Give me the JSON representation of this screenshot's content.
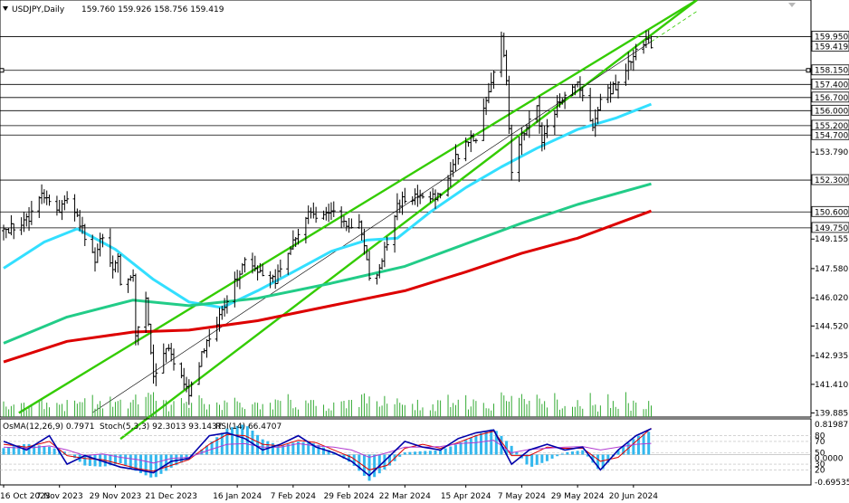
{
  "header": {
    "symbol": "USDJPY,Daily",
    "ohlc": "159.760 159.926 158.756 159.419",
    "dropdown_icon": "triangle-down-icon"
  },
  "colors": {
    "candle": "#000000",
    "price_line": "#000000",
    "level_line": "#000000",
    "channel": "#33cc00",
    "ema_fast": "#33dfff",
    "ema_mid": "#22cc88",
    "ema_slow": "#dd0000",
    "volume": "#33aa33",
    "osma_bar": "#33b8ee",
    "stoch_main": "#0000aa",
    "stoch_signal": "#dd0000",
    "rsi": "#b23bd1"
  },
  "chart_data": {
    "type": "candlestick",
    "symbol": "USDJPY",
    "timeframe": "Daily",
    "price_axis": {
      "range": [
        139.665,
        161.9
      ],
      "ticks": [
        "159.950",
        "159.419",
        "158.150",
        "157.400",
        "156.700",
        "156.000",
        "155.200",
        "154.700",
        "153.790",
        "152.300",
        "150.600",
        "149.750",
        "149.155",
        "147.580",
        "146.020",
        "144.520",
        "142.935",
        "141.410",
        "139.885"
      ]
    },
    "time_axis": {
      "range": [
        "2023-10-16",
        "2024-07-15"
      ],
      "labels": [
        {
          "date": "2023-10-16",
          "label": "16 Oct 2023"
        },
        {
          "date": "2023-11-07",
          "label": "7 Nov 2023"
        },
        {
          "date": "2023-11-29",
          "label": "29 Nov 2023"
        },
        {
          "date": "2023-12-21",
          "label": "21 Dec 2023"
        },
        {
          "date": "2024-01-16",
          "label": "16 Jan 2024"
        },
        {
          "date": "2024-02-07",
          "label": "7 Feb 2024"
        },
        {
          "date": "2024-02-29",
          "label": "29 Feb 2024"
        },
        {
          "date": "2024-03-22",
          "label": "22 Mar 2024"
        },
        {
          "date": "2024-04-15",
          "label": "15 Apr 2024"
        },
        {
          "date": "2024-05-07",
          "label": "7 May 2024"
        },
        {
          "date": "2024-05-29",
          "label": "29 May 2024"
        },
        {
          "date": "2024-06-20",
          "label": "20 Jun 2024"
        }
      ]
    },
    "price_path": [
      [
        "2023-10-16",
        149.6
      ],
      [
        "2023-10-23",
        149.9
      ],
      [
        "2023-10-26",
        150.2
      ],
      [
        "2023-10-31",
        151.5
      ],
      [
        "2023-11-01",
        151.2
      ],
      [
        "2023-11-07",
        150.7
      ],
      [
        "2023-11-10",
        151.5
      ],
      [
        "2023-11-14",
        150.3
      ],
      [
        "2023-11-17",
        149.3
      ],
      [
        "2023-11-21",
        148.0
      ],
      [
        "2023-11-24",
        149.4
      ],
      [
        "2023-11-28",
        147.5
      ],
      [
        "2023-11-30",
        148.1
      ],
      [
        "2023-12-01",
        146.9
      ],
      [
        "2023-12-06",
        147.2
      ],
      [
        "2023-12-07",
        144.1
      ],
      [
        "2023-12-11",
        146.0
      ],
      [
        "2023-12-14",
        141.9
      ],
      [
        "2023-12-19",
        143.5
      ],
      [
        "2023-12-22",
        142.4
      ],
      [
        "2023-12-28",
        141.0
      ],
      [
        "2024-01-03",
        143.3
      ],
      [
        "2024-01-10",
        145.4
      ],
      [
        "2024-01-16",
        147.2
      ],
      [
        "2024-01-19",
        148.1
      ],
      [
        "2024-01-24",
        147.5
      ],
      [
        "2024-01-31",
        146.9
      ],
      [
        "2024-02-05",
        148.6
      ],
      [
        "2024-02-09",
        149.3
      ],
      [
        "2024-02-13",
        150.6
      ],
      [
        "2024-02-16",
        150.2
      ],
      [
        "2024-02-22",
        150.5
      ],
      [
        "2024-02-29",
        149.9
      ],
      [
        "2024-03-04",
        150.1
      ],
      [
        "2024-03-08",
        147.1
      ],
      [
        "2024-03-12",
        147.6
      ],
      [
        "2024-03-15",
        149.0
      ],
      [
        "2024-03-19",
        150.8
      ],
      [
        "2024-03-22",
        151.4
      ],
      [
        "2024-03-29",
        151.3
      ],
      [
        "2024-04-05",
        151.6
      ],
      [
        "2024-04-10",
        153.2
      ],
      [
        "2024-04-15",
        154.3
      ],
      [
        "2024-04-19",
        154.6
      ],
      [
        "2024-04-26",
        158.2
      ],
      [
        "2024-04-29",
        160.2
      ],
      [
        "2024-05-01",
        157.5
      ],
      [
        "2024-05-03",
        152.9
      ],
      [
        "2024-05-07",
        154.6
      ],
      [
        "2024-05-13",
        156.2
      ],
      [
        "2024-05-15",
        154.4
      ],
      [
        "2024-05-21",
        156.3
      ],
      [
        "2024-05-29",
        157.6
      ],
      [
        "2024-06-04",
        154.9
      ],
      [
        "2024-06-07",
        156.8
      ],
      [
        "2024-06-14",
        157.4
      ],
      [
        "2024-06-20",
        158.9
      ],
      [
        "2024-06-24",
        159.5
      ],
      [
        "2024-06-26",
        160.0
      ],
      [
        "2024-06-27",
        159.419
      ]
    ],
    "series": [
      {
        "kind": "ema",
        "color_key": "ema_fast",
        "points": [
          [
            "2023-10-16",
            147.6
          ],
          [
            "2023-11-01",
            149.0
          ],
          [
            "2023-11-14",
            149.7
          ],
          [
            "2023-11-29",
            148.6
          ],
          [
            "2023-12-14",
            147.0
          ],
          [
            "2023-12-28",
            145.8
          ],
          [
            "2024-01-10",
            145.5
          ],
          [
            "2024-01-24",
            146.4
          ],
          [
            "2024-02-07",
            147.4
          ],
          [
            "2024-02-22",
            148.5
          ],
          [
            "2024-03-07",
            149.1
          ],
          [
            "2024-03-19",
            149.2
          ],
          [
            "2024-04-01",
            150.6
          ],
          [
            "2024-04-15",
            151.9
          ],
          [
            "2024-04-29",
            153.0
          ],
          [
            "2024-05-13",
            154.0
          ],
          [
            "2024-05-29",
            155.0
          ],
          [
            "2024-06-13",
            155.6
          ],
          [
            "2024-06-27",
            156.35
          ]
        ]
      },
      {
        "kind": "ema",
        "color_key": "ema_mid",
        "points": [
          [
            "2023-10-16",
            143.6
          ],
          [
            "2023-11-10",
            145.0
          ],
          [
            "2023-12-06",
            145.9
          ],
          [
            "2023-12-28",
            145.6
          ],
          [
            "2024-01-24",
            146.0
          ],
          [
            "2024-02-22",
            146.8
          ],
          [
            "2024-03-22",
            147.7
          ],
          [
            "2024-04-15",
            148.9
          ],
          [
            "2024-05-07",
            150.0
          ],
          [
            "2024-05-29",
            151.0
          ],
          [
            "2024-06-27",
            152.1
          ]
        ]
      },
      {
        "kind": "ema",
        "color_key": "ema_slow",
        "points": [
          [
            "2023-10-16",
            142.6
          ],
          [
            "2023-11-10",
            143.7
          ],
          [
            "2023-12-06",
            144.2
          ],
          [
            "2023-12-28",
            144.3
          ],
          [
            "2024-01-24",
            144.8
          ],
          [
            "2024-02-22",
            145.6
          ],
          [
            "2024-03-22",
            146.4
          ],
          [
            "2024-04-15",
            147.4
          ],
          [
            "2024-05-07",
            148.4
          ],
          [
            "2024-05-29",
            149.2
          ],
          [
            "2024-06-27",
            150.65
          ]
        ]
      }
    ],
    "channel": {
      "upper": [
        [
          "2023-10-22",
          139.885
        ],
        [
          "2024-07-15",
          161.9
        ]
      ],
      "lower": [
        [
          "2023-12-01",
          138.5
        ],
        [
          "2024-07-15",
          161.9
        ]
      ],
      "middle": [
        [
          "2023-11-20",
          139.9
        ],
        [
          "2024-07-15",
          161.3
        ]
      ]
    },
    "indicators": {
      "header": {
        "osma": "OsMA(12,26,9) 0.7971",
        "stoch": "Stoch(5,3,3) 92.3013 93.1437",
        "rsi": "RSI(14) 66.4707"
      },
      "axis": {
        "ticks": [
          "0.81987",
          "80",
          "70",
          "50",
          "30",
          "20",
          "0.0000",
          "-0.69535"
        ],
        "range": [
          -0.69535,
          0.81987
        ]
      },
      "levels": [
        80,
        70,
        50,
        30,
        20
      ],
      "osma": [
        [
          "2023-10-16",
          0.15
        ],
        [
          "2023-10-25",
          0.25
        ],
        [
          "2023-11-03",
          0.18
        ],
        [
          "2023-11-10",
          0.05
        ],
        [
          "2023-11-17",
          -0.25
        ],
        [
          "2023-11-24",
          -0.28
        ],
        [
          "2023-12-01",
          -0.2
        ],
        [
          "2023-12-08",
          -0.4
        ],
        [
          "2023-12-14",
          -0.55
        ],
        [
          "2023-12-21",
          -0.3
        ],
        [
          "2023-12-28",
          -0.1
        ],
        [
          "2024-01-05",
          0.25
        ],
        [
          "2024-01-12",
          0.6
        ],
        [
          "2024-01-19",
          0.7
        ],
        [
          "2024-01-26",
          0.35
        ],
        [
          "2024-02-02",
          0.2
        ],
        [
          "2024-02-09",
          0.3
        ],
        [
          "2024-02-16",
          0.25
        ],
        [
          "2024-02-23",
          0.05
        ],
        [
          "2024-03-01",
          -0.2
        ],
        [
          "2024-03-08",
          -0.6
        ],
        [
          "2024-03-15",
          -0.3
        ],
        [
          "2024-03-22",
          0.05
        ],
        [
          "2024-03-29",
          0.08
        ],
        [
          "2024-04-05",
          0.1
        ],
        [
          "2024-04-12",
          0.25
        ],
        [
          "2024-04-19",
          0.45
        ],
        [
          "2024-04-26",
          0.6
        ],
        [
          "2024-05-03",
          0.2
        ],
        [
          "2024-05-10",
          -0.3
        ],
        [
          "2024-05-17",
          -0.15
        ],
        [
          "2024-05-24",
          0.05
        ],
        [
          "2024-05-31",
          0.1
        ],
        [
          "2024-06-07",
          -0.4
        ],
        [
          "2024-06-14",
          0.1
        ],
        [
          "2024-06-21",
          0.4
        ],
        [
          "2024-06-27",
          0.55
        ]
      ],
      "stoch_main": [
        [
          "2023-10-16",
          70
        ],
        [
          "2023-10-25",
          55
        ],
        [
          "2023-11-03",
          80
        ],
        [
          "2023-11-10",
          30
        ],
        [
          "2023-11-17",
          45
        ],
        [
          "2023-11-24",
          35
        ],
        [
          "2023-12-01",
          25
        ],
        [
          "2023-12-08",
          20
        ],
        [
          "2023-12-14",
          15
        ],
        [
          "2023-12-21",
          35
        ],
        [
          "2023-12-28",
          40
        ],
        [
          "2024-01-05",
          80
        ],
        [
          "2024-01-12",
          85
        ],
        [
          "2024-01-19",
          75
        ],
        [
          "2024-01-26",
          55
        ],
        [
          "2024-02-02",
          65
        ],
        [
          "2024-02-09",
          80
        ],
        [
          "2024-02-16",
          60
        ],
        [
          "2024-02-23",
          50
        ],
        [
          "2024-03-01",
          35
        ],
        [
          "2024-03-08",
          10
        ],
        [
          "2024-03-15",
          40
        ],
        [
          "2024-03-22",
          70
        ],
        [
          "2024-03-29",
          60
        ],
        [
          "2024-04-05",
          55
        ],
        [
          "2024-04-12",
          75
        ],
        [
          "2024-04-19",
          85
        ],
        [
          "2024-04-26",
          90
        ],
        [
          "2024-05-03",
          30
        ],
        [
          "2024-05-10",
          55
        ],
        [
          "2024-05-17",
          65
        ],
        [
          "2024-05-24",
          55
        ],
        [
          "2024-05-31",
          60
        ],
        [
          "2024-06-07",
          20
        ],
        [
          "2024-06-14",
          55
        ],
        [
          "2024-06-21",
          80
        ],
        [
          "2024-06-27",
          92.3
        ]
      ],
      "stoch_signal": [
        [
          "2023-10-16",
          65
        ],
        [
          "2023-10-25",
          60
        ],
        [
          "2023-11-03",
          70
        ],
        [
          "2023-11-10",
          45
        ],
        [
          "2023-11-17",
          40
        ],
        [
          "2023-11-24",
          38
        ],
        [
          "2023-12-01",
          30
        ],
        [
          "2023-12-08",
          22
        ],
        [
          "2023-12-14",
          18
        ],
        [
          "2023-12-21",
          28
        ],
        [
          "2023-12-28",
          38
        ],
        [
          "2024-01-05",
          65
        ],
        [
          "2024-01-12",
          82
        ],
        [
          "2024-01-19",
          80
        ],
        [
          "2024-01-26",
          65
        ],
        [
          "2024-02-02",
          62
        ],
        [
          "2024-02-09",
          72
        ],
        [
          "2024-02-16",
          68
        ],
        [
          "2024-02-23",
          55
        ],
        [
          "2024-03-01",
          42
        ],
        [
          "2024-03-08",
          20
        ],
        [
          "2024-03-15",
          28
        ],
        [
          "2024-03-22",
          58
        ],
        [
          "2024-03-29",
          65
        ],
        [
          "2024-04-05",
          58
        ],
        [
          "2024-04-12",
          68
        ],
        [
          "2024-04-19",
          80
        ],
        [
          "2024-04-26",
          88
        ],
        [
          "2024-05-03",
          45
        ],
        [
          "2024-05-10",
          45
        ],
        [
          "2024-05-17",
          60
        ],
        [
          "2024-05-24",
          58
        ],
        [
          "2024-05-31",
          58
        ],
        [
          "2024-06-07",
          35
        ],
        [
          "2024-06-14",
          42
        ],
        [
          "2024-06-21",
          70
        ],
        [
          "2024-06-27",
          93.1
        ]
      ],
      "rsi": [
        [
          "2023-10-16",
          60
        ],
        [
          "2023-10-25",
          58
        ],
        [
          "2023-11-03",
          62
        ],
        [
          "2023-11-10",
          55
        ],
        [
          "2023-11-17",
          45
        ],
        [
          "2023-11-24",
          48
        ],
        [
          "2023-12-01",
          42
        ],
        [
          "2023-12-08",
          38
        ],
        [
          "2023-12-14",
          32
        ],
        [
          "2023-12-21",
          40
        ],
        [
          "2023-12-28",
          42
        ],
        [
          "2024-01-05",
          55
        ],
        [
          "2024-01-12",
          65
        ],
        [
          "2024-01-19",
          66
        ],
        [
          "2024-01-26",
          60
        ],
        [
          "2024-02-02",
          60
        ],
        [
          "2024-02-09",
          66
        ],
        [
          "2024-02-16",
          62
        ],
        [
          "2024-02-23",
          60
        ],
        [
          "2024-03-01",
          55
        ],
        [
          "2024-03-08",
          42
        ],
        [
          "2024-03-15",
          50
        ],
        [
          "2024-03-22",
          60
        ],
        [
          "2024-03-29",
          60
        ],
        [
          "2024-04-05",
          61
        ],
        [
          "2024-04-12",
          66
        ],
        [
          "2024-04-19",
          68
        ],
        [
          "2024-04-26",
          72
        ],
        [
          "2024-05-03",
          50
        ],
        [
          "2024-05-10",
          56
        ],
        [
          "2024-05-17",
          58
        ],
        [
          "2024-05-24",
          60
        ],
        [
          "2024-05-31",
          61
        ],
        [
          "2024-06-07",
          55
        ],
        [
          "2024-06-14",
          60
        ],
        [
          "2024-06-21",
          65
        ],
        [
          "2024-06-27",
          66.47
        ]
      ]
    }
  }
}
